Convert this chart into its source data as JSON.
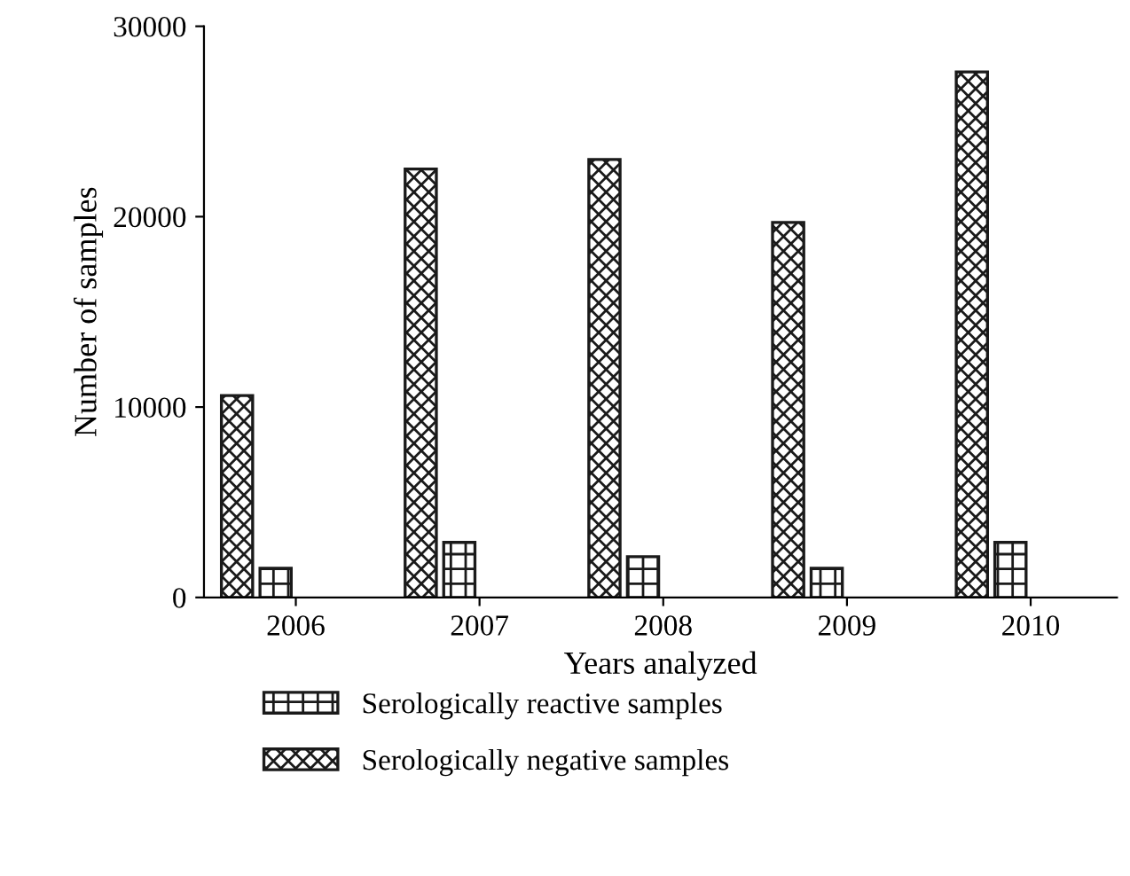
{
  "chart_data": {
    "type": "bar",
    "xlabel": "Years analyzed",
    "ylabel": "Number of samples",
    "categories": [
      "2006",
      "2007",
      "2008",
      "2009",
      "2010"
    ],
    "series": [
      {
        "name": "Serologically negative samples",
        "color": "#1a1a1a",
        "values": [
          10600,
          22500,
          23000,
          19700,
          27600
        ]
      },
      {
        "name": "Serologically reactive samples",
        "color": "#1a1a1a",
        "values": [
          1530,
          2890,
          2140,
          1530,
          2890
        ]
      }
    ],
    "ylim": [
      0,
      30000
    ],
    "yticks": [
      0,
      10000,
      20000,
      30000
    ],
    "grid": false,
    "legend": "bottom"
  }
}
